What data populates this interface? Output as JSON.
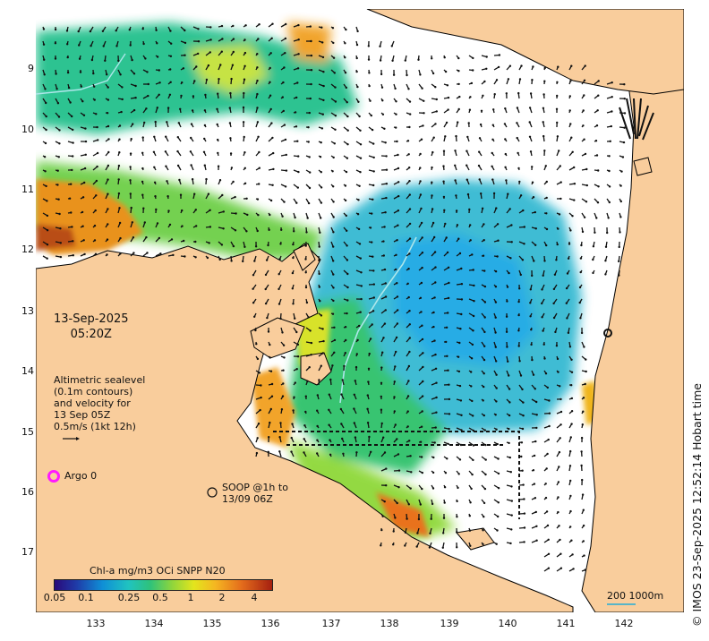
{
  "map": {
    "lat_labels": [
      "9",
      "10",
      "11",
      "12",
      "13",
      "14",
      "15",
      "16",
      "17"
    ],
    "lon_labels": [
      "133",
      "134",
      "135",
      "136",
      "137",
      "138",
      "139",
      "140",
      "141",
      "142"
    ],
    "colors": {
      "land": "#f9cd9c",
      "ocean": "#ffffff",
      "coast": "#000000",
      "arrow": "#111111",
      "contour": "#aee6ea",
      "argo_marker": "#ff1aff"
    }
  },
  "annotations": {
    "date_line1": "13-Sep-2025",
    "date_line2": "05:20Z",
    "altimetry_text": "Altimetric sealevel\n(0.1m contours)\nand velocity for\n13 Sep 05Z\n0.5m/s (1kt 12h)",
    "argo_label": "Argo 0",
    "soop_label": "SOOP @1h to\n13/09 06Z",
    "copyright": "© IMOS 23-Sep-2025 12:52:14 Hobart time"
  },
  "colorbar": {
    "title": "Chl-a mg/m3 OCi SNPP N20",
    "ticks": [
      "0.05",
      "0.1",
      "0.25",
      "0.5",
      "1",
      "2",
      "4"
    ]
  },
  "scalebar": {
    "label": "200  1000m"
  }
}
